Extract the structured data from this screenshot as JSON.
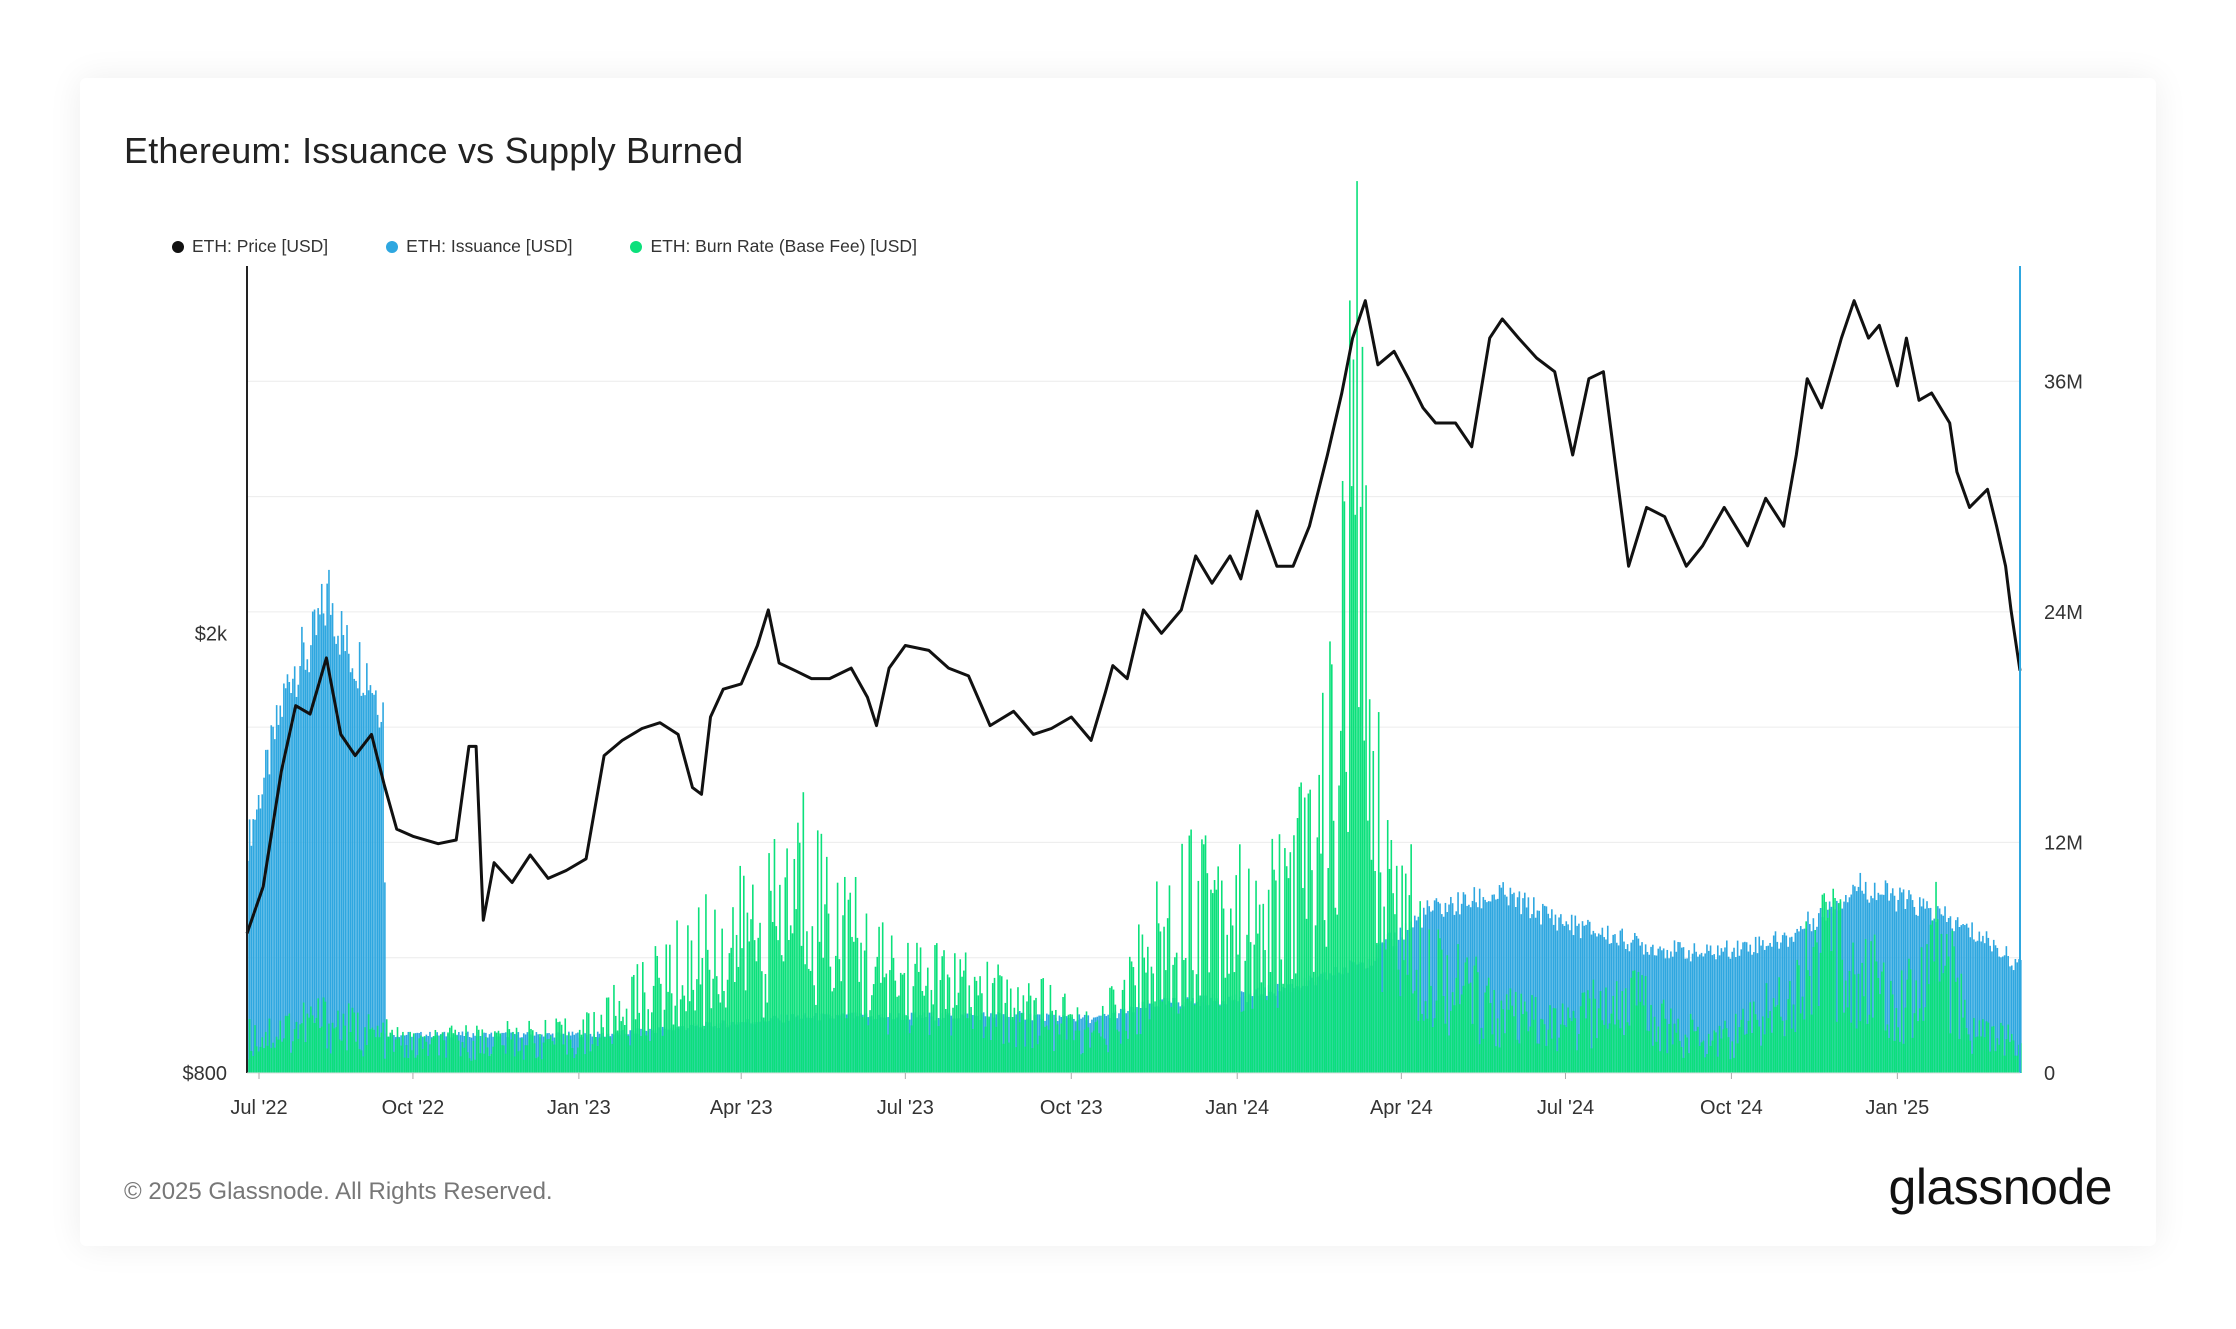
{
  "title": "Ethereum: Issuance vs Supply Burned",
  "footer": "© 2025 Glassnode. All Rights Reserved.",
  "brand": "glassnode",
  "colors": {
    "price": "#111111",
    "issuance": "#2ea7e0",
    "burn": "#0be07b",
    "axis": "#2ea7e0",
    "grid": "#ececec"
  },
  "chart_data": {
    "type": "bar",
    "title": "Ethereum: Issuance vs Supply Burned",
    "x_ticks": [
      "Jul '22",
      "Oct '22",
      "Jan '23",
      "Apr '23",
      "Jul '23",
      "Oct '23",
      "Jan '24",
      "Apr '24",
      "Jul '24",
      "Oct '24",
      "Jan '25"
    ],
    "x_range": [
      "2022-07-01",
      "2025-03-10"
    ],
    "y_left": {
      "ticks": [
        "$800",
        "$2k"
      ],
      "scale": "log",
      "range": [
        800,
        4300
      ]
    },
    "y_right": {
      "ticks": [
        "0",
        "12M",
        "24M",
        "36M"
      ],
      "range": [
        0,
        42000000
      ]
    },
    "legend": [
      "ETH: Price [USD]",
      "ETH: Issuance [USD]",
      "ETH: Burn Rate (Base Fee) [USD]"
    ],
    "series": [
      {
        "name": "ETH: Price [USD]",
        "type": "line",
        "axis": "left",
        "x": [
          "2022-07-01",
          "2022-07-10",
          "2022-07-20",
          "2022-07-28",
          "2022-08-05",
          "2022-08-14",
          "2022-08-22",
          "2022-08-30",
          "2022-09-08",
          "2022-09-15",
          "2022-09-22",
          "2022-10-01",
          "2022-10-15",
          "2022-10-25",
          "2022-11-01",
          "2022-11-05",
          "2022-11-09",
          "2022-11-15",
          "2022-11-25",
          "2022-12-05",
          "2022-12-15",
          "2022-12-25",
          "2023-01-05",
          "2023-01-15",
          "2023-01-25",
          "2023-02-05",
          "2023-02-15",
          "2023-02-25",
          "2023-03-05",
          "2023-03-10",
          "2023-03-15",
          "2023-03-22",
          "2023-04-01",
          "2023-04-10",
          "2023-04-16",
          "2023-04-22",
          "2023-05-01",
          "2023-05-10",
          "2023-05-20",
          "2023-06-01",
          "2023-06-10",
          "2023-06-15",
          "2023-06-22",
          "2023-07-01",
          "2023-07-14",
          "2023-07-25",
          "2023-08-05",
          "2023-08-17",
          "2023-08-30",
          "2023-09-10",
          "2023-09-20",
          "2023-10-01",
          "2023-10-12",
          "2023-10-20",
          "2023-10-24",
          "2023-11-01",
          "2023-11-10",
          "2023-11-20",
          "2023-12-01",
          "2023-12-09",
          "2023-12-18",
          "2023-12-28",
          "2024-01-03",
          "2024-01-12",
          "2024-01-23",
          "2024-02-01",
          "2024-02-10",
          "2024-02-20",
          "2024-02-28",
          "2024-03-05",
          "2024-03-12",
          "2024-03-19",
          "2024-03-28",
          "2024-04-05",
          "2024-04-13",
          "2024-04-20",
          "2024-05-01",
          "2024-05-10",
          "2024-05-20",
          "2024-05-27",
          "2024-06-05",
          "2024-06-15",
          "2024-06-25",
          "2024-07-05",
          "2024-07-14",
          "2024-07-22",
          "2024-08-05",
          "2024-08-15",
          "2024-08-25",
          "2024-09-06",
          "2024-09-15",
          "2024-09-27",
          "2024-10-10",
          "2024-10-20",
          "2024-10-30",
          "2024-11-06",
          "2024-11-12",
          "2024-11-20",
          "2024-12-01",
          "2024-12-08",
          "2024-12-16",
          "2024-12-22",
          "2025-01-01",
          "2025-01-06",
          "2025-01-13",
          "2025-01-20",
          "2025-01-30",
          "2025-02-03",
          "2025-02-10",
          "2025-02-20",
          "2025-02-25",
          "2025-03-02",
          "2025-03-05",
          "2025-03-10"
        ],
        "values": [
          1070,
          1180,
          1500,
          1720,
          1690,
          1900,
          1620,
          1550,
          1620,
          1460,
          1330,
          1310,
          1290,
          1300,
          1580,
          1580,
          1100,
          1240,
          1190,
          1260,
          1200,
          1220,
          1250,
          1550,
          1600,
          1640,
          1660,
          1620,
          1450,
          1430,
          1680,
          1780,
          1800,
          1950,
          2100,
          1880,
          1850,
          1820,
          1820,
          1860,
          1750,
          1650,
          1860,
          1950,
          1930,
          1860,
          1830,
          1650,
          1700,
          1620,
          1640,
          1680,
          1600,
          1770,
          1870,
          1820,
          2100,
          2000,
          2100,
          2350,
          2220,
          2350,
          2240,
          2580,
          2300,
          2300,
          2500,
          2900,
          3300,
          3700,
          4000,
          3500,
          3600,
          3400,
          3200,
          3100,
          3100,
          2950,
          3700,
          3850,
          3700,
          3550,
          3450,
          2900,
          3400,
          3450,
          2300,
          2600,
          2550,
          2300,
          2400,
          2600,
          2400,
          2650,
          2500,
          2900,
          3400,
          3200,
          3700,
          4000,
          3700,
          3800,
          3350,
          3700,
          3250,
          3300,
          3100,
          2800,
          2600,
          2700,
          2500,
          2300,
          2100,
          1850
        ]
      },
      {
        "name": "ETH: Issuance [USD]",
        "type": "bar",
        "axis": "right",
        "x": [
          "2022-07-01",
          "2022-07-12",
          "2022-07-25",
          "2022-08-05",
          "2022-08-15",
          "2022-08-25",
          "2022-09-05",
          "2022-09-14",
          "2022-09-16",
          "2022-10-15",
          "2023-01-15",
          "2023-05-01",
          "2023-09-01",
          "2023-10-15",
          "2023-11-15",
          "2024-01-01",
          "2024-02-15",
          "2024-03-15",
          "2024-04-15",
          "2024-05-25",
          "2024-07-01",
          "2024-08-15",
          "2024-09-15",
          "2024-11-01",
          "2024-12-10",
          "2025-01-15",
          "2025-02-20",
          "2025-03-10"
        ],
        "values": [
          12000000,
          16000000,
          21000000,
          22000000,
          25000000,
          22000000,
          21000000,
          19000000,
          2000000,
          2000000,
          2000000,
          2900000,
          3000000,
          2800000,
          3600000,
          3900000,
          4800000,
          6000000,
          8400000,
          9300000,
          7800000,
          6600000,
          6200000,
          7000000,
          9800000,
          8600000,
          6900000,
          5500000
        ]
      },
      {
        "name": "ETH: Burn Rate (Base Fee) [USD]",
        "type": "bar",
        "axis": "right",
        "x": [
          "2022-07-01",
          "2022-08-10",
          "2022-10-01",
          "2022-11-01",
          "2023-01-01",
          "2023-02-10",
          "2023-03-10",
          "2023-04-20",
          "2023-05-05",
          "2023-05-20",
          "2023-06-15",
          "2023-07-15",
          "2023-08-15",
          "2023-09-15",
          "2023-10-15",
          "2023-11-10",
          "2023-12-01",
          "2023-12-15",
          "2024-01-10",
          "2024-02-10",
          "2024-02-25",
          "2024-03-06",
          "2024-03-20",
          "2024-04-10",
          "2024-05-01",
          "2024-06-01",
          "2024-07-01",
          "2024-08-05",
          "2024-09-01",
          "2024-10-01",
          "2024-11-01",
          "2024-11-20",
          "2024-12-10",
          "2025-01-10",
          "2025-01-20",
          "2025-02-10",
          "2025-03-10"
        ],
        "values": [
          2000000,
          3000000,
          1500000,
          1800000,
          2000000,
          4500000,
          6500000,
          8500000,
          11000000,
          9000000,
          5500000,
          5000000,
          4000000,
          3500000,
          2000000,
          6000000,
          9000000,
          11000000,
          7000000,
          12000000,
          17500000,
          34000000,
          12000000,
          7500000,
          5000000,
          3000000,
          2500000,
          4500000,
          2200000,
          2000000,
          4500000,
          7500000,
          5500000,
          4000000,
          8000000,
          2500000,
          1500000
        ]
      }
    ]
  }
}
